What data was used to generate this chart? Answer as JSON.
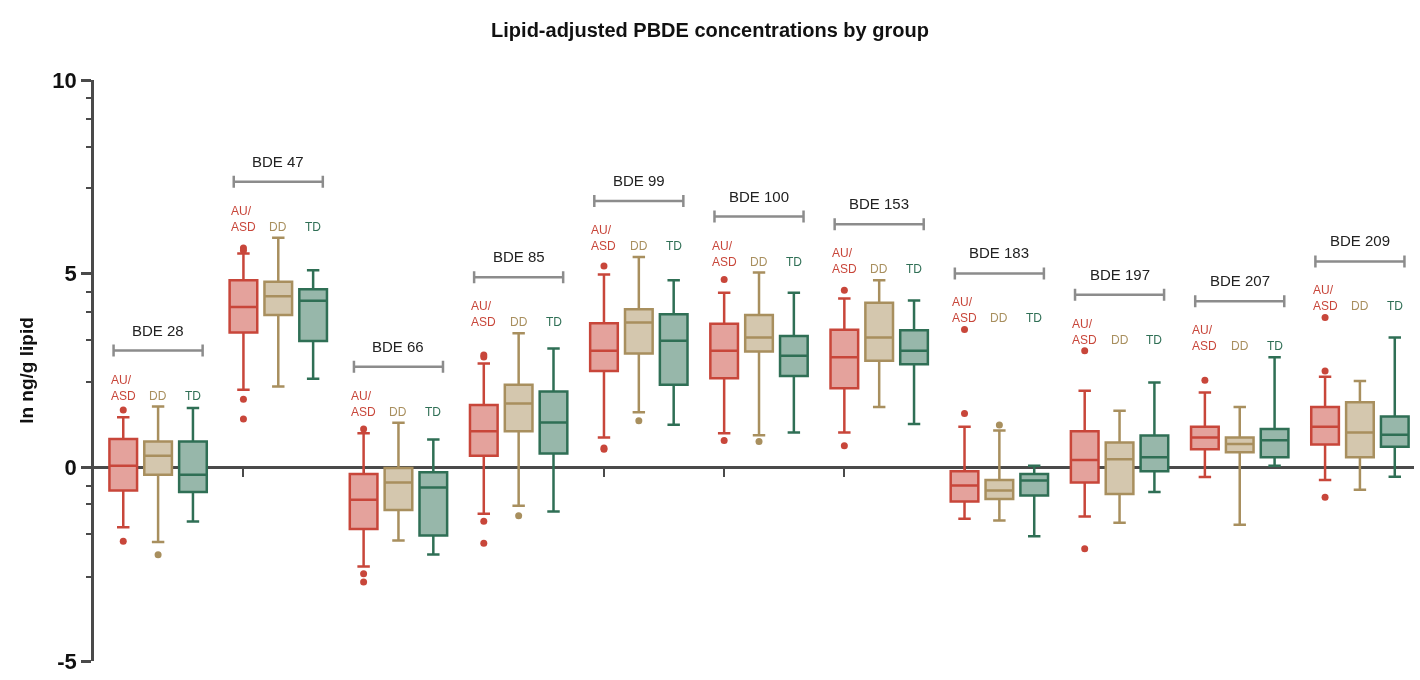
{
  "chart_data": {
    "type": "box",
    "title": "Lipid-adjusted PBDE concentrations by group",
    "ylabel": "ln ng/g lipid",
    "categories": [
      "BDE 28",
      "BDE 47",
      "BDE 66",
      "BDE 85",
      "BDE 99",
      "BDE 100",
      "BDE 153",
      "BDE 183",
      "BDE 197",
      "BDE 207",
      "BDE 209"
    ],
    "ylim": [
      -5,
      10
    ],
    "yticks": [
      -5,
      {
        "value": -2.82,
        "label": null
      },
      {
        "value": -1.72,
        "label": null
      },
      {
        "value": -0.95,
        "label": null
      },
      {
        "value": -0.47,
        "label": null
      },
      0,
      {
        "value": 2.2,
        "label": null
      },
      {
        "value": 3.28,
        "label": null
      },
      {
        "value": 4.0,
        "label": null
      },
      {
        "value": 4.53,
        "label": null
      },
      5,
      {
        "value": 7.2,
        "label": null
      },
      {
        "value": 8.28,
        "label": null
      },
      {
        "value": 9.0,
        "label": null
      },
      {
        "value": 9.54,
        "label": null
      },
      10
    ],
    "series": [
      {
        "name": "AU/ASD",
        "color": "#c8463a",
        "boxes": [
          {
            "low": -1.55,
            "q1": -0.6,
            "median": 0.04,
            "q3": 0.73,
            "high": 1.29,
            "outliers": [
              1.48,
              -1.91
            ]
          },
          {
            "low": 2.0,
            "q1": 3.48,
            "median": 4.14,
            "q3": 4.83,
            "high": 5.52,
            "outliers": [
              5.6,
              5.66,
              1.76,
              1.25
            ]
          },
          {
            "low": -2.56,
            "q1": -1.59,
            "median": -0.84,
            "q3": -0.17,
            "high": 0.88,
            "outliers": [
              0.99,
              -2.75,
              -2.96
            ]
          },
          {
            "low": -1.2,
            "q1": 0.3,
            "median": 0.93,
            "q3": 1.61,
            "high": 2.68,
            "outliers": [
              2.85,
              2.9,
              -1.39,
              -1.96
            ]
          },
          {
            "low": 0.77,
            "q1": 2.49,
            "median": 3.01,
            "q3": 3.72,
            "high": 4.98,
            "outliers": [
              5.2,
              0.47,
              0.5
            ]
          },
          {
            "low": 0.88,
            "q1": 2.3,
            "median": 3.01,
            "q3": 3.71,
            "high": 4.51,
            "outliers": [
              4.85,
              0.69
            ]
          },
          {
            "low": 0.9,
            "q1": 2.04,
            "median": 2.84,
            "q3": 3.55,
            "high": 4.36,
            "outliers": [
              4.57,
              0.56
            ]
          },
          {
            "low": -1.33,
            "q1": -0.88,
            "median": -0.47,
            "q3": -0.1,
            "high": 1.05,
            "outliers": [
              1.39,
              3.56
            ]
          },
          {
            "low": -1.27,
            "q1": -0.39,
            "median": 0.19,
            "q3": 0.93,
            "high": 1.98,
            "outliers": [
              3.01,
              -2.1
            ]
          },
          {
            "low": -0.25,
            "q1": 0.47,
            "median": 0.77,
            "q3": 1.05,
            "high": 1.93,
            "outliers": [
              2.25
            ]
          },
          {
            "low": -0.33,
            "q1": 0.59,
            "median": 1.05,
            "q3": 1.56,
            "high": 2.34,
            "outliers": [
              2.49,
              3.87,
              -0.77
            ]
          }
        ]
      },
      {
        "name": "DD",
        "color": "#a88f5e",
        "boxes": [
          {
            "low": -1.93,
            "q1": -0.19,
            "median": 0.3,
            "q3": 0.67,
            "high": 1.57,
            "outliers": [
              -2.26
            ]
          },
          {
            "low": 2.09,
            "q1": 3.93,
            "median": 4.42,
            "q3": 4.79,
            "high": 5.93
          },
          {
            "low": -1.89,
            "q1": -1.1,
            "median": -0.39,
            "q3": -0.02,
            "high": 1.15
          },
          {
            "low": -0.99,
            "q1": 0.93,
            "median": 1.65,
            "q3": 2.13,
            "high": 3.46,
            "outliers": [
              -1.25
            ]
          },
          {
            "low": 1.42,
            "q1": 2.94,
            "median": 3.74,
            "q3": 4.08,
            "high": 5.43,
            "outliers": [
              1.2
            ]
          },
          {
            "low": 0.83,
            "q1": 2.99,
            "median": 3.35,
            "q3": 3.93,
            "high": 5.03,
            "outliers": [
              0.67
            ]
          },
          {
            "low": 1.56,
            "q1": 2.75,
            "median": 3.35,
            "q3": 4.25,
            "high": 4.83
          },
          {
            "low": -1.37,
            "q1": -0.82,
            "median": -0.6,
            "q3": -0.33,
            "high": 0.95,
            "outliers": [
              1.09
            ]
          },
          {
            "low": -1.43,
            "q1": -0.69,
            "median": 0.21,
            "q3": 0.64,
            "high": 1.46
          },
          {
            "low": -1.48,
            "q1": 0.39,
            "median": 0.6,
            "q3": 0.77,
            "high": 1.56
          },
          {
            "low": -0.58,
            "q1": 0.26,
            "median": 0.9,
            "q3": 1.68,
            "high": 2.23
          }
        ]
      },
      {
        "name": "TD",
        "color": "#2f6f55",
        "boxes": [
          {
            "low": -1.4,
            "q1": -0.64,
            "median": -0.19,
            "q3": 0.67,
            "high": 1.53
          },
          {
            "low": 2.29,
            "q1": 3.26,
            "median": 4.3,
            "q3": 4.6,
            "high": 5.09
          },
          {
            "low": -2.25,
            "q1": -1.76,
            "median": -0.52,
            "q3": -0.13,
            "high": 0.72
          },
          {
            "low": -1.14,
            "q1": 0.36,
            "median": 1.16,
            "q3": 1.96,
            "high": 3.07
          },
          {
            "low": 1.1,
            "q1": 2.13,
            "median": 3.27,
            "q3": 3.95,
            "high": 4.83
          },
          {
            "low": 0.9,
            "q1": 2.36,
            "median": 2.88,
            "q3": 3.39,
            "high": 4.51
          },
          {
            "low": 1.12,
            "q1": 2.66,
            "median": 3.01,
            "q3": 3.54,
            "high": 4.31
          },
          {
            "low": -1.78,
            "q1": -0.73,
            "median": -0.34,
            "q3": -0.17,
            "high": 0.04
          },
          {
            "low": -0.64,
            "q1": -0.1,
            "median": 0.26,
            "q3": 0.82,
            "high": 2.19
          },
          {
            "low": 0.04,
            "q1": 0.26,
            "median": 0.7,
            "q3": 0.99,
            "high": 2.84
          },
          {
            "low": -0.24,
            "q1": 0.53,
            "median": 0.84,
            "q3": 1.31,
            "high": 3.35
          }
        ]
      }
    ]
  }
}
